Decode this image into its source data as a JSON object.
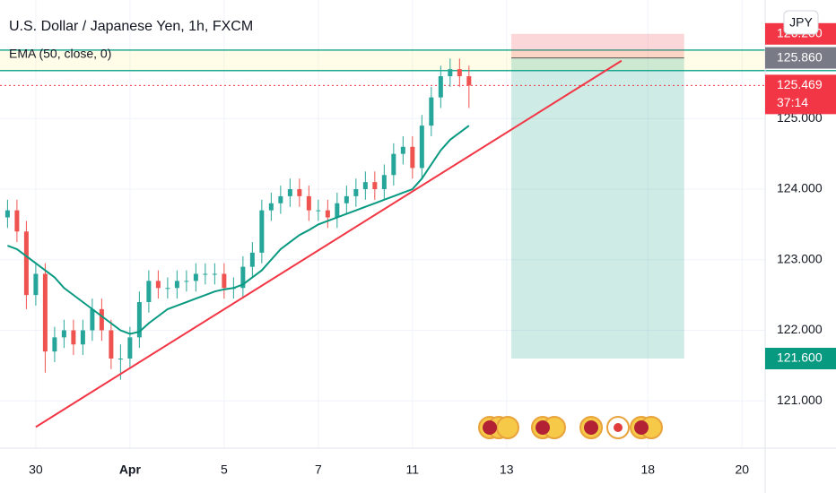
{
  "chart_data": {
    "type": "candlestick",
    "title": "U.S. Dollar / Japanese Yen, 1h, FXCM",
    "currency_button": "JPY",
    "x": [
      -0.6,
      -0.4,
      -0.2,
      0,
      0.2,
      0.4,
      0.6,
      0.8,
      1,
      1.2,
      1.4,
      1.6,
      1.8,
      2,
      2.2,
      2.4,
      2.6,
      2.8,
      3,
      3.2,
      3.4,
      3.6,
      3.8,
      4,
      4.2,
      4.4,
      4.6,
      4.8,
      5,
      5.2,
      5.4,
      5.6,
      5.8,
      6,
      6.2,
      6.4,
      6.6,
      6.8,
      7,
      7.2,
      7.4,
      7.6,
      7.8,
      8,
      8.2,
      8.4,
      8.6,
      8.8,
      9,
      9.2
    ],
    "candles": {
      "up_color": "#26a69a",
      "down_color": "#ef5350",
      "open": [
        123.6,
        123.7,
        123.4,
        122.5,
        122.8,
        121.7,
        121.9,
        122.0,
        121.8,
        122.0,
        122.3,
        122.0,
        121.6,
        121.6,
        121.9,
        122.4,
        122.7,
        122.6,
        122.6,
        122.7,
        122.7,
        122.8,
        122.8,
        122.8,
        122.6,
        122.6,
        122.9,
        123.1,
        123.7,
        123.8,
        123.9,
        124.0,
        123.9,
        123.7,
        123.7,
        123.6,
        123.8,
        123.9,
        124.0,
        124.1,
        124.0,
        124.2,
        124.5,
        124.6,
        124.3,
        124.9,
        125.3,
        125.6,
        125.7,
        125.6
      ],
      "high": [
        123.85,
        123.85,
        123.55,
        122.95,
        122.95,
        122.05,
        122.15,
        122.15,
        122.15,
        122.45,
        122.45,
        122.15,
        121.8,
        122.05,
        122.55,
        122.85,
        122.85,
        122.75,
        122.85,
        122.85,
        122.95,
        122.95,
        122.95,
        122.95,
        122.75,
        123.05,
        123.25,
        123.85,
        123.95,
        124.05,
        124.15,
        124.15,
        124.05,
        123.85,
        123.85,
        123.95,
        124.05,
        124.15,
        124.25,
        124.25,
        124.35,
        124.65,
        124.75,
        124.75,
        125.05,
        125.45,
        125.75,
        125.85,
        125.85,
        125.75
      ],
      "low": [
        123.45,
        123.25,
        122.3,
        122.35,
        121.4,
        121.55,
        121.75,
        121.65,
        121.65,
        121.85,
        121.85,
        121.45,
        121.3,
        121.45,
        121.75,
        122.25,
        122.45,
        122.45,
        122.45,
        122.55,
        122.55,
        122.65,
        122.65,
        122.45,
        122.45,
        122.45,
        122.75,
        122.95,
        123.55,
        123.65,
        123.75,
        123.75,
        123.55,
        123.55,
        123.45,
        123.45,
        123.65,
        123.75,
        123.85,
        123.85,
        123.85,
        124.05,
        124.35,
        124.15,
        124.15,
        124.75,
        125.15,
        125.45,
        125.45,
        125.15
      ],
      "close": [
        123.7,
        123.4,
        122.5,
        122.8,
        121.7,
        121.9,
        122.0,
        121.8,
        122.0,
        122.3,
        122.0,
        121.6,
        121.6,
        121.9,
        122.4,
        122.7,
        122.6,
        122.6,
        122.7,
        122.7,
        122.8,
        122.8,
        122.8,
        122.6,
        122.6,
        122.9,
        123.1,
        123.7,
        123.8,
        123.9,
        124.0,
        123.9,
        123.7,
        123.7,
        123.6,
        123.8,
        123.9,
        124.0,
        124.1,
        124.0,
        124.2,
        124.5,
        124.6,
        124.3,
        124.9,
        125.3,
        125.6,
        125.7,
        125.6,
        125.469
      ]
    },
    "ema": {
      "name": "EMA (50, close, 0)",
      "color": "#089981",
      "values": [
        123.2,
        123.15,
        123.05,
        122.95,
        122.85,
        122.75,
        122.6,
        122.5,
        122.4,
        122.3,
        122.2,
        122.1,
        122.0,
        121.95,
        121.98,
        122.1,
        122.2,
        122.3,
        122.35,
        122.4,
        122.45,
        122.5,
        122.55,
        122.58,
        122.6,
        122.65,
        122.75,
        122.85,
        123.0,
        123.15,
        123.25,
        123.35,
        123.42,
        123.5,
        123.55,
        123.6,
        123.65,
        123.7,
        123.75,
        123.8,
        123.85,
        123.9,
        123.95,
        124.0,
        124.15,
        124.35,
        124.55,
        124.7,
        124.8,
        124.9
      ]
    },
    "trendline": {
      "color": "#f23645",
      "x": [
        0,
        12.44
      ],
      "values": [
        120.63,
        125.82
      ]
    },
    "hlines": {
      "color": "#22ab94",
      "values": [
        125.97,
        125.68
      ]
    },
    "position": {
      "x": [
        10.1,
        13.77
      ],
      "entry": 125.86,
      "stop": 126.2,
      "target": 121.6
    },
    "last_price": {
      "value": 125.469,
      "color": "#f23645"
    },
    "price_labels": {
      "values": [
        126.2,
        125.86,
        125.469,
        121.6
      ],
      "value_labels": [
        "126.200",
        "125.860",
        "125.469",
        "121.600"
      ],
      "colors": [
        "#f23645",
        "#787b86",
        "#f23645",
        "#089981"
      ]
    },
    "countdown": "37:14",
    "xlim": [
      -0.76,
      15.49
    ],
    "xticks": [
      {
        "value": 0,
        "label": "30"
      },
      {
        "value": 2,
        "label": "Apr"
      },
      {
        "value": 4,
        "label": "5"
      },
      {
        "value": 6,
        "label": "7"
      },
      {
        "value": 8,
        "label": "11"
      },
      {
        "value": 10,
        "label": "13"
      },
      {
        "value": 13,
        "label": "18"
      },
      {
        "value": 15,
        "label": "20"
      }
    ],
    "ylim": [
      120.33,
      126.68
    ],
    "yticks": [
      {
        "value": 121,
        "label": "121.000"
      },
      {
        "value": 122,
        "label": "122.000"
      },
      {
        "value": 123,
        "label": "123.000"
      },
      {
        "value": 124,
        "label": "124.000"
      },
      {
        "value": 125,
        "label": "125.000"
      }
    ],
    "grid": true
  }
}
